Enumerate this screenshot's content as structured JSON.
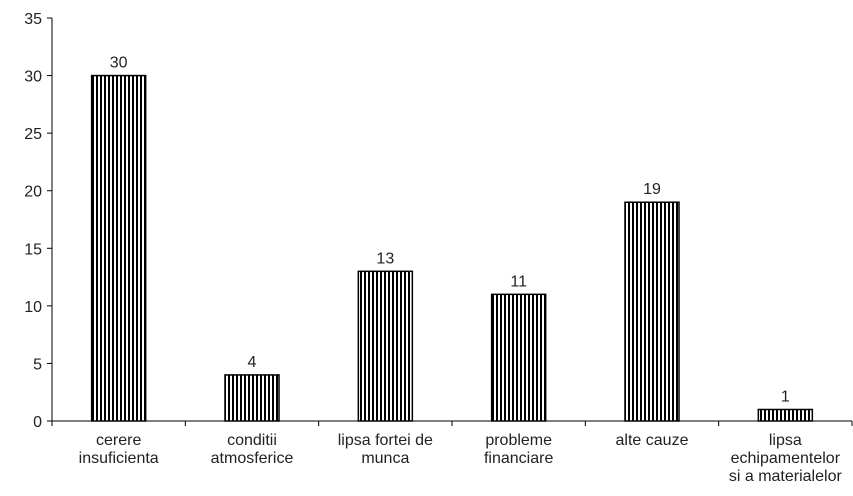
{
  "chart_data": {
    "type": "bar",
    "categories": [
      "cerere\ninsuficienta",
      "conditii\natmosferice",
      "lipsa fortei de\nmunca",
      "probleme\nfinanciare",
      "alte cauze",
      "lipsa\nechipamentelor\nsi a materialelor"
    ],
    "values": [
      30,
      4,
      13,
      11,
      19,
      1
    ],
    "color": "#000000",
    "ylim": [
      0,
      35
    ],
    "yticks": [
      0,
      5,
      10,
      15,
      20,
      25,
      30,
      35
    ],
    "grid": false
  }
}
